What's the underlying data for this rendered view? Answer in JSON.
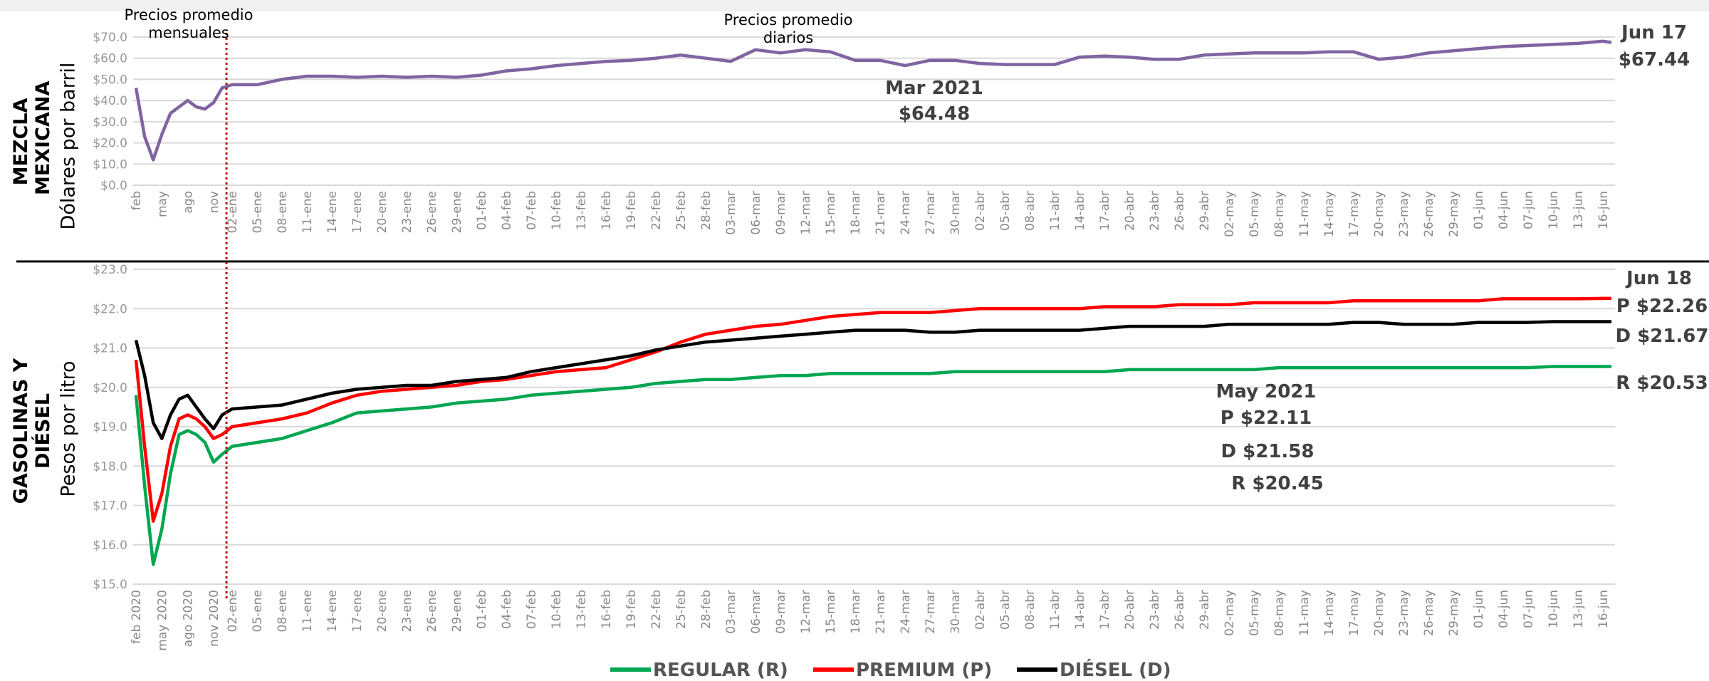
{
  "chart_data": [
    {
      "type": "line",
      "title": "MEZCLA MEXICANA",
      "ylabel": "Dólares por barril",
      "categories": [
        "feb",
        null,
        null,
        "may",
        null,
        null,
        "ago",
        null,
        null,
        "nov",
        null,
        "02-ene",
        "05-ene",
        "08-ene",
        "11-ene",
        "14-ene",
        "17-ene",
        "20-ene",
        "23-ene",
        "26-ene",
        "29-ene",
        "01-feb",
        "04-feb",
        "07-feb",
        "10-feb",
        "13-feb",
        "16-feb",
        "19-feb",
        "22-feb",
        "25-feb",
        "28-feb",
        "03-mar",
        "06-mar",
        "09-mar",
        "12-mar",
        "15-mar",
        "18-mar",
        "21-mar",
        "24-mar",
        "27-mar",
        "30-mar",
        "02-abr",
        "05-abr",
        "08-abr",
        "11-abr",
        "14-abr",
        "17-abr",
        "20-abr",
        "23-abr",
        "26-abr",
        "29-abr",
        "02-may",
        "05-may",
        "08-may",
        "11-may",
        "14-may",
        "17-may",
        "20-may",
        "23-may",
        "26-may",
        "29-may",
        "01-jun",
        "04-jun",
        "07-jun",
        "10-jun",
        "13-jun",
        "16-jun",
        null
      ],
      "values": [
        46,
        23,
        12,
        24,
        34,
        37,
        40,
        37,
        36,
        39,
        46,
        47.5,
        47.5,
        50,
        51.5,
        51.5,
        51,
        51.5,
        51,
        51.5,
        51,
        52,
        54,
        55,
        56.5,
        57.5,
        58.5,
        59,
        60,
        61.5,
        60,
        58.5,
        64,
        62.5,
        64,
        63,
        59,
        59,
        56.5,
        59,
        59,
        57.5,
        57,
        57,
        57,
        60.5,
        61,
        60.5,
        59.5,
        59.5,
        61.5,
        62,
        62.5,
        62.5,
        62.5,
        63,
        63,
        59.5,
        60.5,
        62.5,
        63.5,
        64.5,
        65.5,
        66,
        66.5,
        67,
        68,
        67.44
      ],
      "color": "#8064a2",
      "ylim": [
        0,
        70
      ],
      "yticks": [
        {
          "value": 0,
          "label": "$0.0"
        },
        {
          "value": 10,
          "label": "$10.0"
        },
        {
          "value": 20,
          "label": "$20.0"
        },
        {
          "value": 30,
          "label": "$30.0"
        },
        {
          "value": 40,
          "label": "$40.0"
        },
        {
          "value": 50,
          "label": "$50.0"
        },
        {
          "value": 60,
          "label": "$60.0"
        },
        {
          "value": 70,
          "label": "$70.0"
        }
      ],
      "grid": true,
      "annotations": [
        "Precios promedio mensuales",
        "Precios promedio diarios",
        "Mar 2021",
        "$64.48",
        "Jun 17",
        "$67.44"
      ]
    },
    {
      "type": "line",
      "title": "GASOLINAS Y DIÉSEL",
      "ylabel": "Pesos por litro",
      "categories": [
        "feb 2020",
        null,
        null,
        "may 2020",
        null,
        null,
        "ago 2020",
        null,
        null,
        "nov 2020",
        null,
        "02-ene",
        "05-ene",
        "08-ene",
        "11-ene",
        "14-ene",
        "17-ene",
        "20-ene",
        "23-ene",
        "26-ene",
        "29-ene",
        "01-feb",
        "04-feb",
        "07-feb",
        "10-feb",
        "13-feb",
        "16-feb",
        "19-feb",
        "22-feb",
        "25-feb",
        "28-feb",
        "03-mar",
        "06-mar",
        "09-mar",
        "12-mar",
        "15-mar",
        "18-mar",
        "21-mar",
        "24-mar",
        "27-mar",
        "30-mar",
        "02-abr",
        "05-abr",
        "08-abr",
        "11-abr",
        "14-abr",
        "17-abr",
        "20-abr",
        "23-abr",
        "26-abr",
        "29-abr",
        "02-may",
        "05-may",
        "08-may",
        "11-may",
        "14-may",
        "17-may",
        "20-may",
        "23-may",
        "26-may",
        "29-may",
        "01-jun",
        "04-jun",
        "07-jun",
        "10-jun",
        "13-jun",
        "16-jun",
        null
      ],
      "series": [
        {
          "name": "REGULAR (R)",
          "color": "#00a650",
          "values": [
            19.8,
            17.5,
            15.5,
            16.4,
            17.8,
            18.8,
            18.9,
            18.8,
            18.6,
            18.1,
            18.3,
            18.5,
            18.6,
            18.7,
            18.9,
            19.1,
            19.35,
            19.4,
            19.45,
            19.5,
            19.6,
            19.65,
            19.7,
            19.8,
            19.85,
            19.9,
            19.95,
            20.0,
            20.1,
            20.15,
            20.2,
            20.2,
            20.25,
            20.3,
            20.3,
            20.35,
            20.35,
            20.35,
            20.35,
            20.35,
            20.4,
            20.4,
            20.4,
            20.4,
            20.4,
            20.4,
            20.4,
            20.45,
            20.45,
            20.45,
            20.45,
            20.45,
            20.45,
            20.5,
            20.5,
            20.5,
            20.5,
            20.5,
            20.5,
            20.5,
            20.5,
            20.5,
            20.5,
            20.5,
            20.53,
            20.53,
            20.53,
            20.53
          ]
        },
        {
          "name": "PREMIUM (P)",
          "color": "#ff0000",
          "values": [
            20.7,
            18.5,
            16.6,
            17.3,
            18.5,
            19.2,
            19.3,
            19.2,
            19.0,
            18.7,
            18.8,
            19.0,
            19.1,
            19.2,
            19.35,
            19.6,
            19.8,
            19.9,
            19.95,
            20.0,
            20.05,
            20.15,
            20.2,
            20.3,
            20.4,
            20.45,
            20.5,
            20.7,
            20.9,
            21.15,
            21.35,
            21.45,
            21.55,
            21.6,
            21.7,
            21.8,
            21.85,
            21.9,
            21.9,
            21.9,
            21.95,
            22.0,
            22.0,
            22.0,
            22.0,
            22.0,
            22.05,
            22.05,
            22.05,
            22.1,
            22.1,
            22.1,
            22.15,
            22.15,
            22.15,
            22.15,
            22.2,
            22.2,
            22.2,
            22.2,
            22.2,
            22.2,
            22.25,
            22.25,
            22.25,
            22.25,
            22.26,
            22.26
          ]
        },
        {
          "name": "DIÉSEL (D)",
          "color": "#000000",
          "values": [
            21.2,
            20.3,
            19.1,
            18.7,
            19.3,
            19.7,
            19.8,
            19.5,
            19.2,
            18.95,
            19.3,
            19.45,
            19.5,
            19.55,
            19.7,
            19.85,
            19.95,
            20.0,
            20.05,
            20.05,
            20.15,
            20.2,
            20.25,
            20.4,
            20.5,
            20.6,
            20.7,
            20.8,
            20.95,
            21.05,
            21.15,
            21.2,
            21.25,
            21.3,
            21.35,
            21.4,
            21.45,
            21.45,
            21.45,
            21.4,
            21.4,
            21.45,
            21.45,
            21.45,
            21.45,
            21.45,
            21.5,
            21.55,
            21.55,
            21.55,
            21.55,
            21.6,
            21.6,
            21.6,
            21.6,
            21.6,
            21.65,
            21.65,
            21.6,
            21.6,
            21.6,
            21.65,
            21.65,
            21.65,
            21.67,
            21.67,
            21.67,
            21.67
          ]
        }
      ],
      "ylim": [
        15,
        23
      ],
      "yticks": [
        {
          "value": 15,
          "label": "$15.0"
        },
        {
          "value": 16,
          "label": "$16.0"
        },
        {
          "value": 17,
          "label": "$17.0"
        },
        {
          "value": 18,
          "label": "$18.0"
        },
        {
          "value": 19,
          "label": "$19.0"
        },
        {
          "value": 20,
          "label": "$20.0"
        },
        {
          "value": 21,
          "label": "$21.0"
        },
        {
          "value": 22,
          "label": "$22.0"
        },
        {
          "value": 23,
          "label": "$23.0"
        }
      ],
      "grid": true,
      "legend": "bottom",
      "annotations": [
        "Jun 18",
        "P $22.26",
        "D $21.67",
        "R $20.53",
        "May 2021",
        "P $22.11",
        "D $21.58",
        "R $20.45"
      ]
    }
  ]
}
